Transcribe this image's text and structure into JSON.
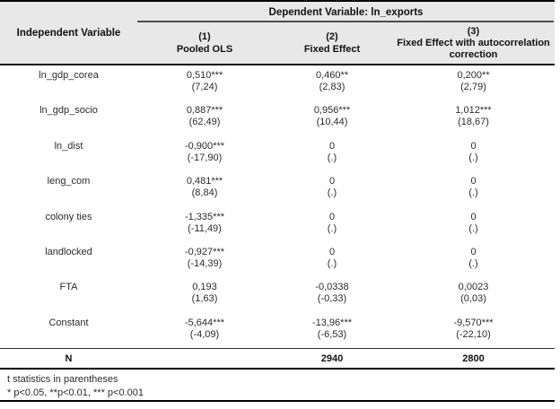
{
  "table": {
    "header": {
      "independent_variable": "Independent Variable",
      "dependent_variable": "Dependent Variable: ln_exports",
      "columns": [
        {
          "number": "(1)",
          "name": "Pooled OLS"
        },
        {
          "number": "(2)",
          "name": "Fixed Effect"
        },
        {
          "number": "(3)",
          "name": "Fixed Effect with autocorrelation correction"
        }
      ]
    },
    "rows": [
      {
        "variable": "ln_gdp_corea",
        "c1": "0,510***",
        "t1": "(7,24)",
        "c2": "0,460**",
        "t2": "(2,83)",
        "c3": "0,200**",
        "t3": "(2,79)"
      },
      {
        "variable": "ln_gdp_socio",
        "c1": "0,887***",
        "t1": "(62,49)",
        "c2": "0,956***",
        "t2": "(10,44)",
        "c3": "1,012***",
        "t3": "(18,67)"
      },
      {
        "variable": "ln_dist",
        "c1": "-0,900***",
        "t1": "(-17,90)",
        "c2": "0",
        "t2": "(.)",
        "c3": "0",
        "t3": "(.)"
      },
      {
        "variable": "leng_com",
        "c1": "0,481***",
        "t1": "(8,84)",
        "c2": "0",
        "t2": "(.)",
        "c3": "0",
        "t3": "(.)"
      },
      {
        "variable": "colony ties",
        "c1": "-1,335***",
        "t1": "(-11,49)",
        "c2": "0",
        "t2": "(.)",
        "c3": "0",
        "t3": "(.)"
      },
      {
        "variable": "landlocked",
        "c1": "-0,927***",
        "t1": "(-14,39)",
        "c2": "0",
        "t2": "(.)",
        "c3": "0",
        "t3": "(.)"
      },
      {
        "variable": "FTA",
        "c1": "0,193",
        "t1": "(1,63)",
        "c2": "-0,0338",
        "t2": "(-0,33)",
        "c3": "0,0023",
        "t3": "(0,03)"
      },
      {
        "variable": "Constant",
        "c1": "-5,644***",
        "t1": "(-4,09)",
        "c2": "-13,96***",
        "t2": "(-6,53)",
        "c3": "-9,570***",
        "t3": "(-22,10)"
      }
    ],
    "summary": {
      "label": "N",
      "col1": "",
      "col2": "2940",
      "col3": "2800"
    },
    "notes": {
      "line1": "t statistics in parentheses",
      "line2": "* p<0.05, **p<0.01, *** p<0.001"
    }
  },
  "colors": {
    "header_background": "#e8e8e8",
    "border": "#000000",
    "text": "#2b2b2b"
  }
}
